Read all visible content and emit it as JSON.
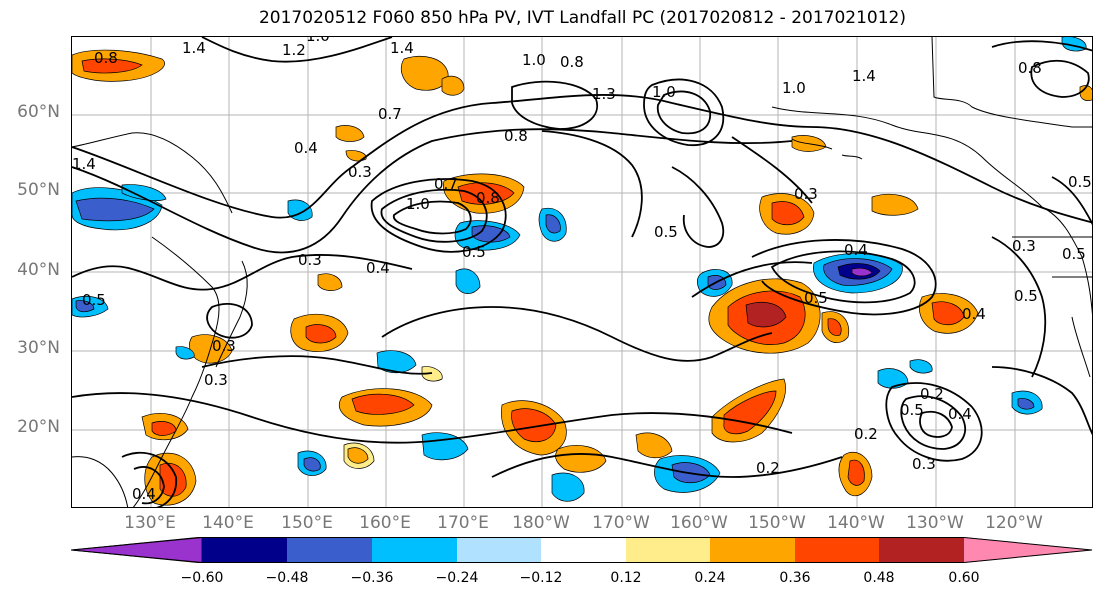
{
  "title": "2017020512 F060 850 hPa PV, IVT Landfall PC (2017020812 - 2017021012)",
  "latitude_labels": [
    "60°N",
    "50°N",
    "40°N",
    "30°N",
    "20°N"
  ],
  "longitude_labels": [
    "130°E",
    "140°E",
    "150°E",
    "160°E",
    "170°E",
    "180°W",
    "170°W",
    "160°W",
    "150°W",
    "140°W",
    "130°W",
    "120°W"
  ],
  "contour_labels": [
    "0.8",
    "1.4",
    "1.2",
    "1.0",
    "1.4",
    "1.0",
    "0.8",
    "1.3",
    "1.0",
    "1.4",
    "0.8",
    "0.7",
    "0.8",
    "0.4",
    "0.3",
    "1.4",
    "1.0",
    "0.7",
    "0.8",
    "1.0",
    "0.5",
    "0.3",
    "0.5",
    "0.3",
    "0.4",
    "0.4",
    "0.5",
    "0.5",
    "0.3",
    "0.5",
    "0.3",
    "0.4",
    "0.3",
    "0.2",
    "0.5",
    "0.4",
    "0.3",
    "0.2",
    "0.2",
    "0.4",
    "0.5",
    "0.5"
  ],
  "colorbar": {
    "ticks": [
      "−0.60",
      "−0.48",
      "−0.36",
      "−0.24",
      "−0.12",
      "0.12",
      "0.24",
      "0.36",
      "0.48",
      "0.60"
    ],
    "colors": [
      "#9a32cd",
      "#00008b",
      "#3a5fcd",
      "#00bfff",
      "#b0e2ff",
      "#ffffff",
      "#ffec8b",
      "#ffa500",
      "#ff4500",
      "#b22222",
      "#ff88b0"
    ]
  },
  "shading_colors": {
    "neg_weak": "#b0e2ff",
    "neg_mid": "#00bfff",
    "neg_strong": "#3a5fcd",
    "neg_vstrong": "#00008b",
    "pos_weak": "#ffec8b",
    "pos_mid": "#ffa500",
    "pos_strong": "#ff4500",
    "pos_vstrong": "#b22222"
  }
}
